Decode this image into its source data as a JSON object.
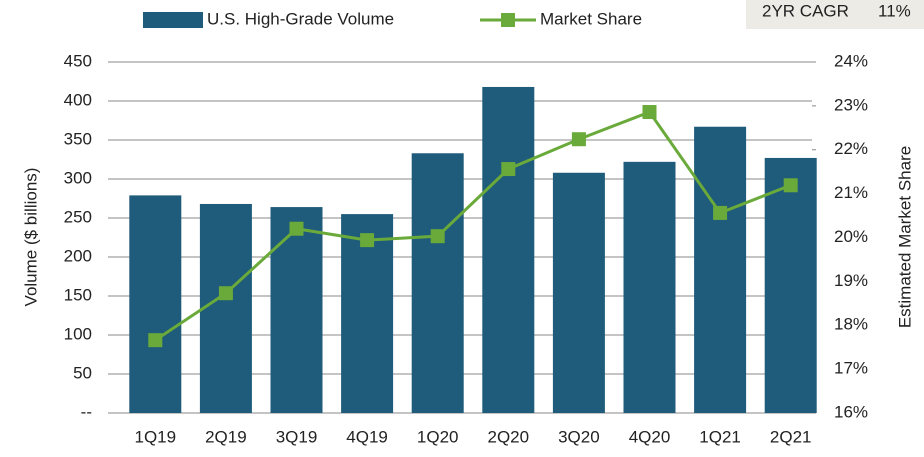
{
  "chart_data": {
    "type": "bar_line",
    "categories": [
      "1Q19",
      "2Q19",
      "3Q19",
      "4Q19",
      "1Q20",
      "2Q20",
      "3Q20",
      "4Q20",
      "1Q21",
      "2Q21"
    ],
    "series": [
      {
        "name": "U.S. High-Grade Volume",
        "color": "#1f5b7a",
        "type": "bar",
        "values": [
          279,
          268,
          264,
          255,
          333,
          418,
          308,
          322,
          367,
          327
        ]
      },
      {
        "name": "Market Share",
        "color": "#6aaa3a",
        "type": "line",
        "axis": "y2",
        "values": [
          17.66,
          18.73,
          20.2,
          19.94,
          20.03,
          21.56,
          22.24,
          22.86,
          20.56,
          21.19
        ]
      }
    ],
    "ylabel": "Volume ($ billions)",
    "y2label": "Estimated Market Share",
    "ylim": [
      0,
      450
    ],
    "yticks": [
      {
        "value": 0,
        "label": "--"
      },
      50,
      100,
      150,
      200,
      250,
      300,
      350,
      400,
      450
    ],
    "y2lim": [
      16,
      24
    ],
    "y2ticks": [
      {
        "value": 16,
        "label": "16%"
      },
      {
        "value": 17,
        "label": "17%"
      },
      {
        "value": 18,
        "label": "18%"
      },
      {
        "value": 19,
        "label": "19%"
      },
      {
        "value": 20,
        "label": "20%"
      },
      {
        "value": 21,
        "label": "21%"
      },
      {
        "value": 22,
        "label": "22%"
      },
      {
        "value": 23,
        "label": "23%"
      },
      {
        "value": 24,
        "label": "24%"
      }
    ],
    "annotation": {
      "label": "2YR CAGR",
      "value": "11%"
    },
    "grid": true
  }
}
